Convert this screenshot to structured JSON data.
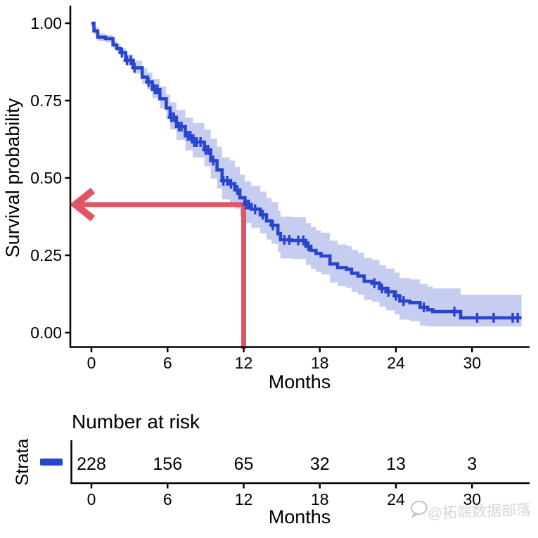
{
  "watermark": {
    "text": "@拓端数据部落",
    "icon": "speech-bubble-icon"
  },
  "chart_data": {
    "type": "line",
    "subtype": "kaplan-meier-survival-curve",
    "title": "",
    "xlabel": "Months",
    "ylabel": "Survival probability",
    "xlim": [
      0,
      34.5
    ],
    "ylim": [
      0,
      1
    ],
    "x_ticks": [
      0,
      6,
      12,
      18,
      24,
      30
    ],
    "y_ticks": [
      {
        "value": 0.0,
        "label": "0.00"
      },
      {
        "value": 0.25,
        "label": "0.25"
      },
      {
        "value": 0.5,
        "label": "0.50"
      },
      {
        "value": 0.75,
        "label": "0.75"
      },
      {
        "value": 1.0,
        "label": "1.00"
      }
    ],
    "grid": false,
    "legend_position": "none",
    "line_color": "#2845CE",
    "band_color": "#C6CDF1",
    "annotation": {
      "type": "arrow-readout",
      "x": 12,
      "y": 0.414,
      "color": "#E05564",
      "description": "red right-angle arrow from x=12 months up to curve then left to y-axis at survival ~0.41"
    },
    "steps": [
      [
        0.0,
        1.0
      ],
      [
        0.2,
        0.975
      ],
      [
        0.5,
        0.955
      ],
      [
        1.1,
        0.95
      ],
      [
        1.7,
        0.93
      ],
      [
        2.0,
        0.918
      ],
      [
        2.3,
        0.905
      ],
      [
        2.7,
        0.88
      ],
      [
        3.3,
        0.856
      ],
      [
        4.0,
        0.826
      ],
      [
        4.4,
        0.81
      ],
      [
        4.8,
        0.786
      ],
      [
        5.4,
        0.756
      ],
      [
        5.9,
        0.726
      ],
      [
        6.2,
        0.696
      ],
      [
        6.7,
        0.666
      ],
      [
        7.4,
        0.636
      ],
      [
        8.0,
        0.616
      ],
      [
        8.9,
        0.591
      ],
      [
        9.4,
        0.556
      ],
      [
        9.9,
        0.526
      ],
      [
        10.3,
        0.491
      ],
      [
        10.9,
        0.481
      ],
      [
        11.3,
        0.461
      ],
      [
        11.7,
        0.436
      ],
      [
        12.1,
        0.414
      ],
      [
        12.6,
        0.399
      ],
      [
        13.3,
        0.381
      ],
      [
        13.8,
        0.361
      ],
      [
        14.2,
        0.347
      ],
      [
        14.7,
        0.32
      ],
      [
        14.9,
        0.3
      ],
      [
        15.8,
        0.298
      ],
      [
        16.9,
        0.279
      ],
      [
        17.3,
        0.266
      ],
      [
        17.7,
        0.256
      ],
      [
        18.1,
        0.248
      ],
      [
        18.8,
        0.222
      ],
      [
        19.4,
        0.21
      ],
      [
        20.1,
        0.205
      ],
      [
        20.5,
        0.192
      ],
      [
        21.0,
        0.183
      ],
      [
        21.5,
        0.166
      ],
      [
        22.1,
        0.16
      ],
      [
        22.7,
        0.143
      ],
      [
        23.2,
        0.132
      ],
      [
        23.9,
        0.119
      ],
      [
        24.3,
        0.102
      ],
      [
        25.1,
        0.097
      ],
      [
        25.9,
        0.082
      ],
      [
        26.5,
        0.074
      ],
      [
        26.9,
        0.068
      ],
      [
        29.1,
        0.048
      ],
      [
        33.9,
        0.048
      ]
    ],
    "censor_times": [
      2.4,
      2.8,
      3.1,
      3.4,
      4.5,
      5.0,
      5.2,
      6.3,
      6.5,
      6.9,
      7.1,
      7.6,
      7.8,
      8.1,
      8.3,
      8.6,
      9.0,
      9.2,
      9.6,
      10.4,
      10.7,
      11.0,
      11.5,
      12.2,
      12.4,
      12.9,
      13.5,
      14.3,
      15.2,
      15.6,
      16.3,
      16.7,
      17.1,
      22.3,
      22.9,
      23.4,
      24.0,
      24.6,
      26.2,
      28.6,
      30.4,
      31.7,
      33.2,
      33.6
    ],
    "ci_rule": {
      "hi_factor": 0.16,
      "hi_cap": 0.075,
      "hi_min": 0.012,
      "lo_factor": 0.13,
      "lo_cap": 0.06,
      "lo_min": 0.012,
      "lo_floor": 0.02
    }
  },
  "risk_table": {
    "title": "Number at risk",
    "strata_label": "Strata",
    "xlabel": "Months",
    "times": [
      0,
      6,
      12,
      18,
      24,
      30
    ],
    "counts": [
      228,
      156,
      65,
      32,
      13,
      3
    ],
    "legend_color": "#2845CE"
  }
}
